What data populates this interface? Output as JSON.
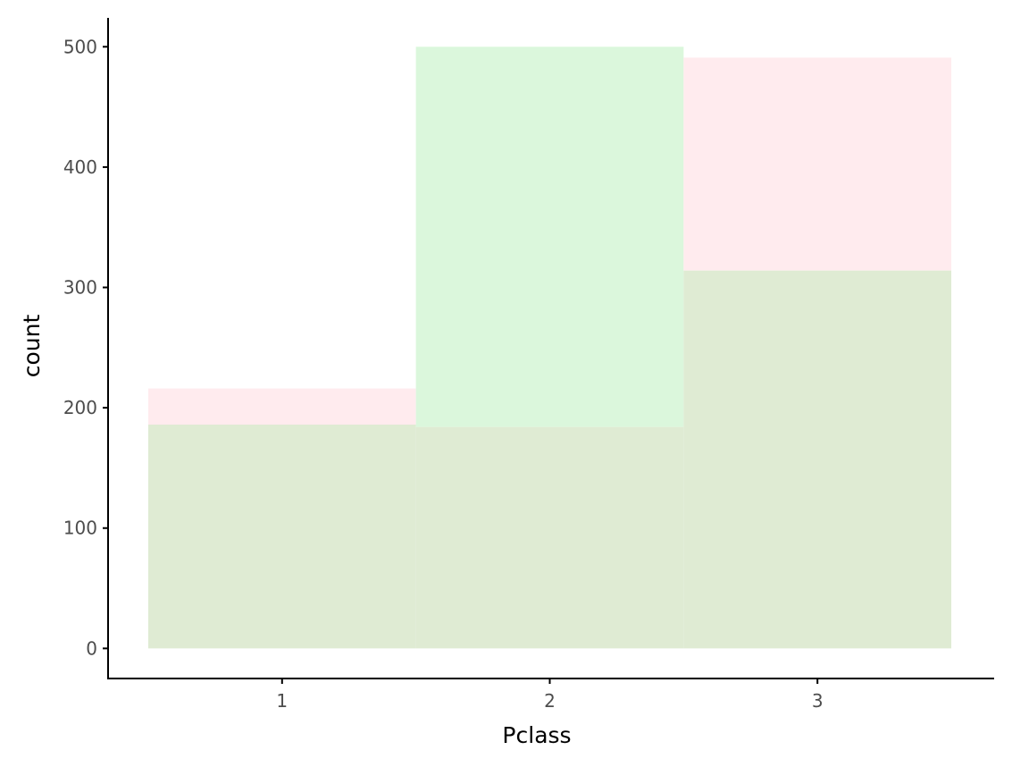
{
  "chart_data": {
    "type": "bar",
    "categories": [
      "1",
      "2",
      "3"
    ],
    "series": [
      {
        "values": [
          216,
          184,
          491
        ],
        "color": "#ffebee"
      },
      {
        "values": [
          186,
          500,
          314
        ],
        "color": "#dbf7dc"
      }
    ],
    "overlap_color": "#dfebd3",
    "title": "",
    "xlabel": "Pclass",
    "ylabel": "count",
    "ylim": [
      -25,
      524
    ],
    "yticks": [
      0,
      100,
      200,
      300,
      400,
      500
    ],
    "grid": false,
    "legend": "none"
  }
}
